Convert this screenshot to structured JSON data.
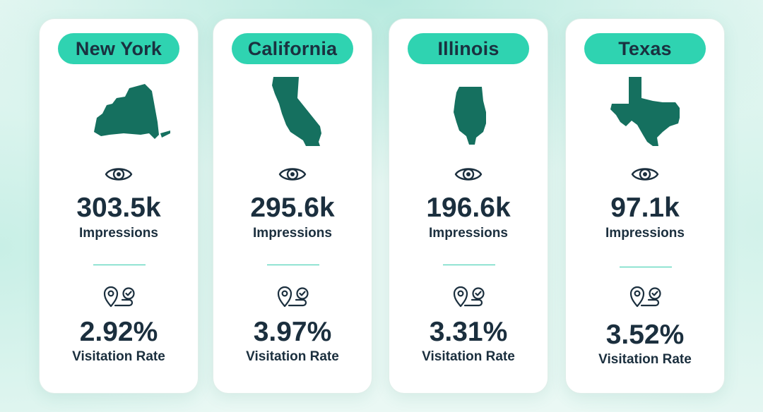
{
  "colors": {
    "pill": "#2fd3b1",
    "map_fill": "#15705f",
    "text": "#1b2f3e",
    "divider": "#33ccad"
  },
  "cards": [
    {
      "state": "New York",
      "map_icon": "new-york-map-icon",
      "impressions": "303.5k",
      "impressions_label": "Impressions",
      "visitation_rate": "2.92%",
      "visitation_label": "Visitation Rate"
    },
    {
      "state": "California",
      "map_icon": "california-map-icon",
      "impressions": "295.6k",
      "impressions_label": "Impressions",
      "visitation_rate": "3.97%",
      "visitation_label": "Visitation Rate"
    },
    {
      "state": "Illinois",
      "map_icon": "illinois-map-icon",
      "impressions": "196.6k",
      "impressions_label": "Impressions",
      "visitation_rate": "3.31%",
      "visitation_label": "Visitation Rate"
    },
    {
      "state": "Texas",
      "map_icon": "texas-map-icon",
      "impressions": "97.1k",
      "impressions_label": "Impressions",
      "visitation_rate": "3.52%",
      "visitation_label": "Visitation Rate"
    }
  ],
  "icons": {
    "impressions": "eye-icon",
    "visitation": "location-check-icon"
  }
}
